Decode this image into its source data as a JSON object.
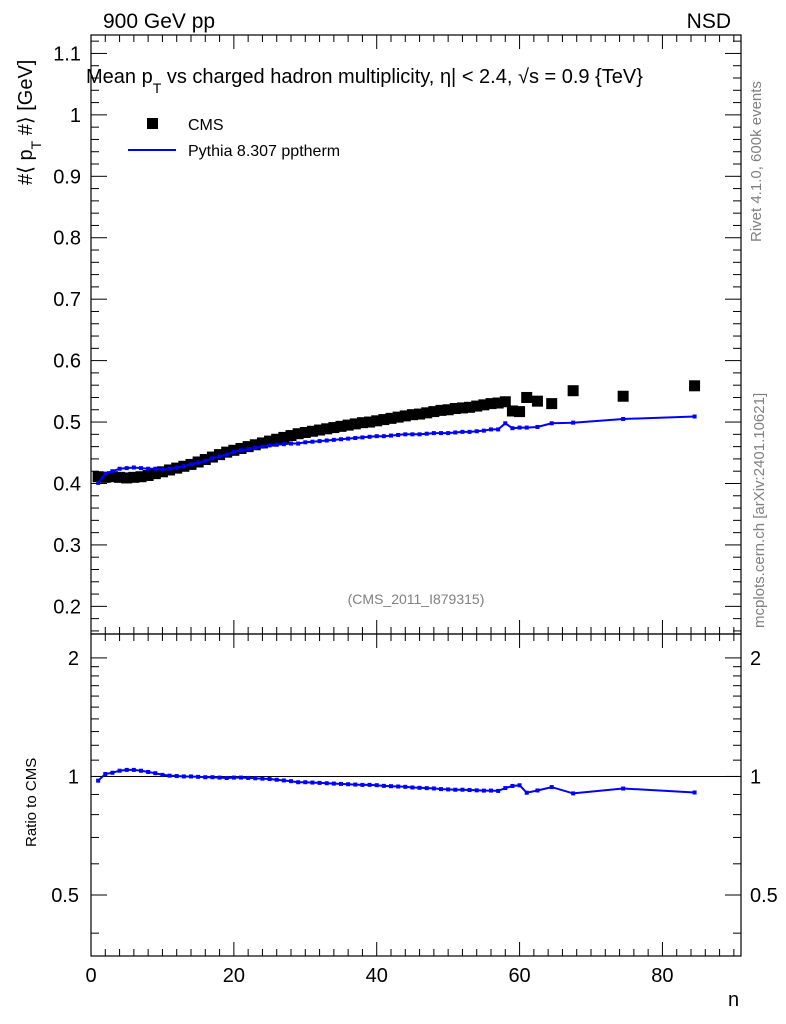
{
  "header": {
    "energy_label": "900 GeV pp",
    "process_label": "NSD"
  },
  "side_labels": {
    "rivet": "Rivet 4.1.0,  600k events",
    "mcplots": "mcplots.cern.ch [arXiv:2401.10621]"
  },
  "chart_data": {
    "type": "line",
    "title": "Mean p_T vs charged hadron multiplicity, |η| < 2.4, √s = 0.9 {TeV}",
    "title_parts": {
      "pre": "Mean p",
      "sub": "T",
      "mid": " vs charged hadron multiplicity, ",
      "eta": "η| < 2.4, ",
      "sqrt": "√s",
      "post": " = 0.9 {TeV}"
    },
    "ylabel": "#⟨ p_T #⟩ [GeV]",
    "ylabel_parts": {
      "pre": "#⟨ p",
      "sub": "T",
      "post": " #⟩ [GeV]"
    },
    "xlabel": "n",
    "ratio_ylabel": "Ratio to CMS",
    "watermark": "(CMS_2011_I879315)",
    "xlim": [
      0,
      91
    ],
    "ylim": [
      0.155,
      1.13
    ],
    "ratio_ylim": [
      0.35,
      2.3
    ],
    "x_ticks": [
      0,
      20,
      40,
      60,
      80
    ],
    "y_ticks": [
      0.2,
      0.3,
      0.4,
      0.5,
      0.6,
      0.7,
      0.8,
      0.9,
      1,
      1.1
    ],
    "y_tick_labels": [
      "0.2",
      "0.3",
      "0.4",
      "0.5",
      "0.6",
      "0.7",
      "0.8",
      "0.9",
      "1",
      "1.1"
    ],
    "ratio_ticks": [
      0.5,
      1,
      2
    ],
    "ratio_tick_labels": [
      "0.5",
      "1",
      "2"
    ],
    "legend": [
      {
        "name": "CMS",
        "marker": "square",
        "color": "#000000"
      },
      {
        "name": "Pythia 8.307 pptherm",
        "marker": "line",
        "color": "#0000ff"
      }
    ],
    "series": [
      {
        "name": "CMS",
        "x": [
          1,
          2,
          3,
          4,
          5,
          6,
          7,
          8,
          9,
          10,
          11,
          12,
          13,
          14,
          15,
          16,
          17,
          18,
          19,
          20,
          21,
          22,
          23,
          24,
          25,
          26,
          27,
          28,
          29,
          30,
          31,
          32,
          33,
          34,
          35,
          36,
          37,
          38,
          39,
          40,
          41,
          42,
          43,
          44,
          45,
          46,
          47,
          48,
          49,
          50,
          51,
          52,
          53,
          54,
          55,
          56,
          57,
          58,
          59,
          60,
          61,
          62.5,
          64.5,
          67.5,
          74.5,
          84.5
        ],
        "y": [
          0.411,
          0.41,
          0.411,
          0.41,
          0.409,
          0.41,
          0.411,
          0.413,
          0.416,
          0.419,
          0.422,
          0.425,
          0.428,
          0.431,
          0.435,
          0.439,
          0.443,
          0.447,
          0.451,
          0.454,
          0.457,
          0.46,
          0.463,
          0.466,
          0.469,
          0.472,
          0.475,
          0.478,
          0.481,
          0.483,
          0.485,
          0.487,
          0.489,
          0.491,
          0.493,
          0.495,
          0.497,
          0.499,
          0.5,
          0.502,
          0.504,
          0.506,
          0.508,
          0.51,
          0.512,
          0.513,
          0.515,
          0.517,
          0.519,
          0.52,
          0.522,
          0.523,
          0.524,
          0.526,
          0.528,
          0.53,
          0.531,
          0.533,
          0.518,
          0.517,
          0.54,
          0.534,
          0.53,
          0.551,
          0.542,
          0.559
        ]
      },
      {
        "name": "Pythia 8.307 pptherm",
        "x": [
          1,
          2,
          3,
          4,
          5,
          6,
          7,
          8,
          9,
          10,
          11,
          12,
          13,
          14,
          15,
          16,
          17,
          18,
          19,
          20,
          21,
          22,
          23,
          24,
          25,
          26,
          27,
          28,
          29,
          30,
          31,
          32,
          33,
          34,
          35,
          36,
          37,
          38,
          39,
          40,
          41,
          42,
          43,
          44,
          45,
          46,
          47,
          48,
          49,
          50,
          51,
          52,
          53,
          54,
          55,
          56,
          57,
          58,
          59,
          60,
          61,
          62.5,
          64.5,
          67.5,
          74.5,
          84.5
        ],
        "y": [
          0.401,
          0.416,
          0.42,
          0.424,
          0.425,
          0.426,
          0.425,
          0.424,
          0.424,
          0.423,
          0.424,
          0.426,
          0.428,
          0.431,
          0.434,
          0.437,
          0.441,
          0.444,
          0.447,
          0.451,
          0.454,
          0.456,
          0.458,
          0.46,
          0.462,
          0.463,
          0.464,
          0.465,
          0.465,
          0.467,
          0.468,
          0.469,
          0.47,
          0.471,
          0.472,
          0.473,
          0.474,
          0.475,
          0.476,
          0.477,
          0.477,
          0.478,
          0.479,
          0.48,
          0.48,
          0.48,
          0.481,
          0.482,
          0.482,
          0.482,
          0.483,
          0.484,
          0.484,
          0.485,
          0.486,
          0.488,
          0.488,
          0.498,
          0.49,
          0.491,
          0.491,
          0.492,
          0.498,
          0.499,
          0.505,
          0.509
        ]
      }
    ]
  }
}
